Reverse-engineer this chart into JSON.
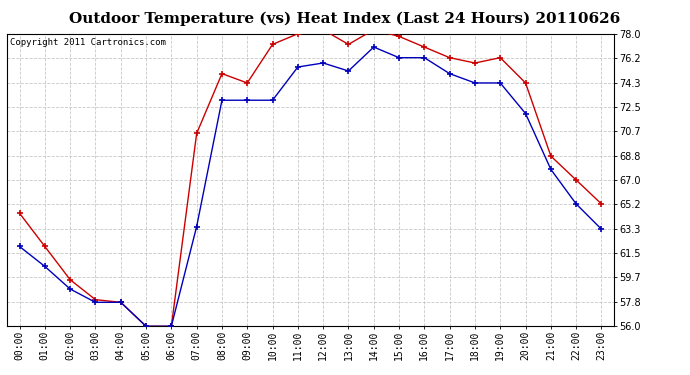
{
  "title": "Outdoor Temperature (vs) Heat Index (Last 24 Hours) 20110626",
  "copyright": "Copyright 2011 Cartronics.com",
  "x_labels": [
    "00:00",
    "01:00",
    "02:00",
    "03:00",
    "04:00",
    "05:00",
    "06:00",
    "07:00",
    "08:00",
    "09:00",
    "10:00",
    "11:00",
    "12:00",
    "13:00",
    "14:00",
    "15:00",
    "16:00",
    "17:00",
    "18:00",
    "19:00",
    "20:00",
    "21:00",
    "22:00",
    "23:00"
  ],
  "temp_blue": [
    62.0,
    60.5,
    58.8,
    57.8,
    57.8,
    56.0,
    56.0,
    63.5,
    73.0,
    73.0,
    73.0,
    75.5,
    75.8,
    75.2,
    77.0,
    76.2,
    76.2,
    75.0,
    74.3,
    74.3,
    72.0,
    67.8,
    65.2,
    63.3
  ],
  "heat_red": [
    64.5,
    62.0,
    59.5,
    58.0,
    57.8,
    56.0,
    56.0,
    70.5,
    75.0,
    74.3,
    77.2,
    78.0,
    78.3,
    77.2,
    78.3,
    77.8,
    77.0,
    76.2,
    75.8,
    76.2,
    74.3,
    68.8,
    67.0,
    65.2
  ],
  "ylim": [
    56.0,
    78.0
  ],
  "yticks": [
    56.0,
    57.8,
    59.7,
    61.5,
    63.3,
    65.2,
    67.0,
    68.8,
    70.7,
    72.5,
    74.3,
    76.2,
    78.0
  ],
  "blue_color": "#0000bb",
  "red_color": "#cc0000",
  "grid_color": "#bbbbbb",
  "bg_color": "#ffffff",
  "title_fontsize": 11,
  "copyright_fontsize": 6.5,
  "tick_fontsize": 7
}
